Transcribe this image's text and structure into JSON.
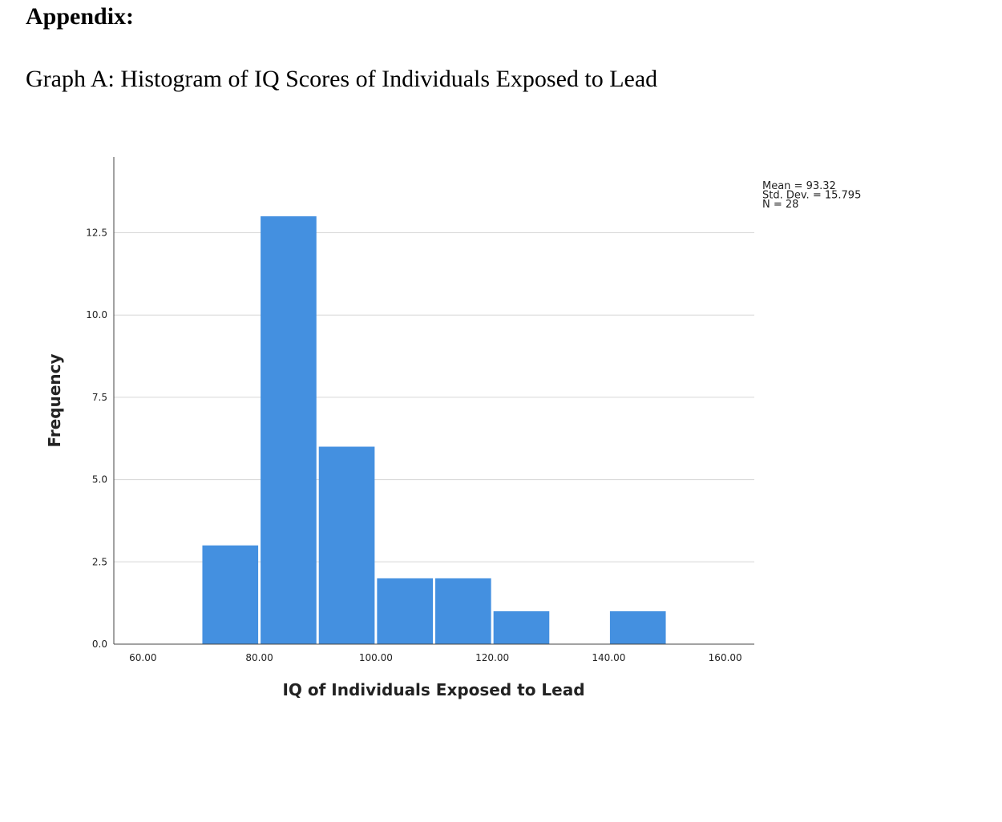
{
  "document": {
    "heading": "Appendix:",
    "caption": "Graph A: Histogram of IQ Scores of Individuals Exposed to Lead"
  },
  "chart_data": {
    "type": "bar",
    "subtype": "histogram",
    "xlabel": "IQ of Individuals Exposed to Lead",
    "ylabel": "Frequency",
    "xlim": [
      55,
      165
    ],
    "ylim": [
      0,
      14.8
    ],
    "xticks": [
      "60.00",
      "80.00",
      "100.00",
      "120.00",
      "140.00",
      "160.00"
    ],
    "xtick_values": [
      60,
      80,
      100,
      120,
      140,
      160
    ],
    "yticks": [
      "0.0",
      "2.5",
      "5.0",
      "7.5",
      "10.0",
      "12.5"
    ],
    "ytick_values": [
      0,
      2.5,
      5,
      7.5,
      10,
      12.5
    ],
    "bins": [
      {
        "from": 70,
        "to": 80,
        "count": 3
      },
      {
        "from": 80,
        "to": 90,
        "count": 13
      },
      {
        "from": 90,
        "to": 100,
        "count": 6
      },
      {
        "from": 100,
        "to": 110,
        "count": 2
      },
      {
        "from": 110,
        "to": 120,
        "count": 2
      },
      {
        "from": 120,
        "to": 130,
        "count": 1
      },
      {
        "from": 130,
        "to": 140,
        "count": 0
      },
      {
        "from": 140,
        "to": 150,
        "count": 1
      }
    ],
    "stats": [
      "Mean = 93.32",
      "Std. Dev. = 15.795",
      "N = 28"
    ],
    "grid": true,
    "bar_color": "#4490e0",
    "grid_color": "#d6d6d6"
  }
}
